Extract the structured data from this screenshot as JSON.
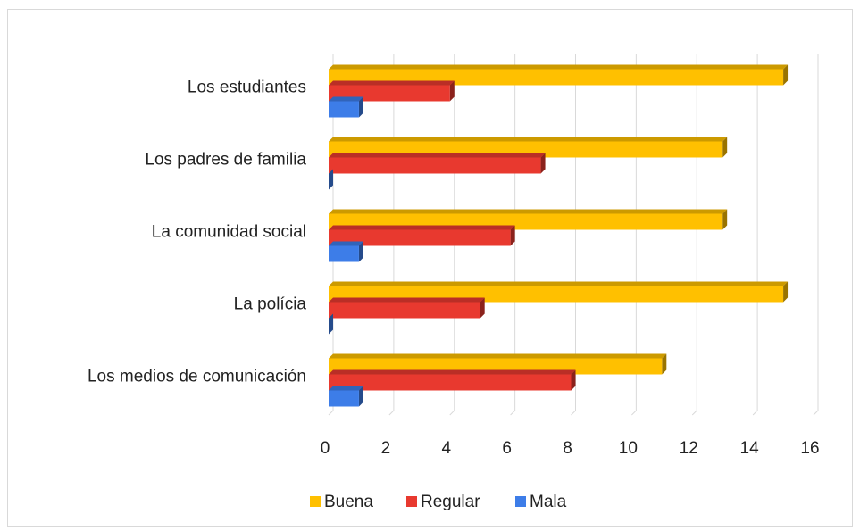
{
  "chart_data": {
    "type": "bar",
    "orientation": "horizontal",
    "categories": [
      "Los estudiantes",
      "Los padres de familia",
      "La comunidad social",
      "La polícia",
      "Los medios de comunicación"
    ],
    "series": [
      {
        "name": "Buena",
        "color": "#ffc000",
        "values": [
          15,
          13,
          13,
          15,
          11
        ]
      },
      {
        "name": "Regular",
        "color": "#e8392f",
        "values": [
          4,
          7,
          6,
          5,
          8
        ]
      },
      {
        "name": "Mala",
        "color": "#3d7de8",
        "values": [
          1,
          0,
          1,
          0,
          1
        ]
      }
    ],
    "xlim": [
      0,
      16
    ],
    "xticks": [
      0,
      2,
      4,
      6,
      8,
      10,
      12,
      14,
      16
    ],
    "grid": true,
    "legend": "bottom"
  }
}
